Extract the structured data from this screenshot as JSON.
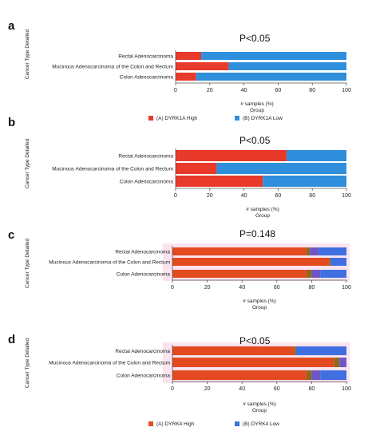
{
  "chart_data": [
    {
      "type": "bar",
      "panel_letter": "a",
      "annotation": "P<0.05",
      "ylabel": "Cancer Type Detailed",
      "xlabel": "# samples (%)",
      "xlabel2": "Group",
      "xlim": [
        0,
        100
      ],
      "xticks": [
        "0",
        "20",
        "40",
        "60",
        "80",
        "100"
      ],
      "orientation": "horizontal",
      "stacked": true,
      "categories": [
        "Rectal Adenocarcinoma",
        "Mucinous Adenocarcinoma of the Colon and Rectum",
        "Colon Adenocarcinoma"
      ],
      "series": [
        {
          "name": "(A) DYRK1A High",
          "color": "#e8392b",
          "values": [
            15,
            31,
            12
          ]
        },
        {
          "name": "(B) DYRK1A Low",
          "color": "#2f8fdc",
          "values": [
            85,
            69,
            88
          ]
        }
      ]
    },
    {
      "type": "bar",
      "panel_letter": "b",
      "annotation": "P<0.05",
      "ylabel": "Cancer Type Detailed",
      "xlabel": "# samples (%)",
      "xlabel2": "Group",
      "xlim": [
        0,
        100
      ],
      "xticks": [
        "0",
        "20",
        "40",
        "60",
        "80",
        "100"
      ],
      "orientation": "horizontal",
      "stacked": true,
      "categories": [
        "Rectal Adenocarcinoma",
        "Mucinous Adenocarcinoma of the Colon and Rectum",
        "Colon Adenocarcinoma"
      ],
      "series": [
        {
          "color": "#e8392b",
          "values": [
            65,
            24,
            51
          ]
        },
        {
          "color": "#2f8fdc",
          "values": [
            35,
            76,
            49
          ]
        }
      ]
    },
    {
      "type": "bar",
      "panel_letter": "c",
      "annotation": "P=0.148",
      "ylabel": "Cancer Type Detailed",
      "xlabel": "# samples (%)",
      "xlabel2": "Group",
      "xlim": [
        0,
        100
      ],
      "xticks": [
        "0",
        "20",
        "40",
        "60",
        "80",
        "100"
      ],
      "orientation": "horizontal",
      "stacked": true,
      "categories": [
        "Rectal Adenocarcinoma",
        "Mucinous Adenocarcinoma of the Colon and Rectum",
        "Colon Adenocarcinoma"
      ],
      "series": [
        {
          "color": "#e34a1f",
          "values": [
            77,
            90,
            77
          ]
        },
        {
          "color": "#8b6a1e",
          "values": [
            2,
            1,
            3
          ]
        },
        {
          "color": "#6f56c4",
          "values": [
            5,
            0,
            5
          ]
        },
        {
          "color": "#3f6fe0",
          "values": [
            16,
            9,
            15
          ]
        }
      ]
    },
    {
      "type": "bar",
      "panel_letter": "d",
      "annotation": "P<0.05",
      "ylabel": "Cancer Type Detailed",
      "xlabel": "# samples (%)",
      "xlabel2": "Group",
      "xlim": [
        0,
        100
      ],
      "xticks": [
        "0",
        "20",
        "40",
        "60",
        "80",
        "100"
      ],
      "orientation": "horizontal",
      "stacked": true,
      "categories": [
        "Rectal Adenocarcinoma",
        "Mucinous Adenocarcinoma of the Colon and Rectum",
        "Colon Adenocarcinoma"
      ],
      "series": [
        {
          "name": "(A) DYRK4 High",
          "color": "#e34a1f",
          "values": [
            70,
            93,
            77
          ]
        },
        {
          "color": "#8b6a1e",
          "values": [
            1,
            3,
            3
          ]
        },
        {
          "color": "#6f56c4",
          "values": [
            0,
            4,
            5
          ]
        },
        {
          "name": "(B) DYRK4 Low",
          "color": "#3f6fe0",
          "values": [
            29,
            0,
            15
          ]
        }
      ]
    }
  ]
}
